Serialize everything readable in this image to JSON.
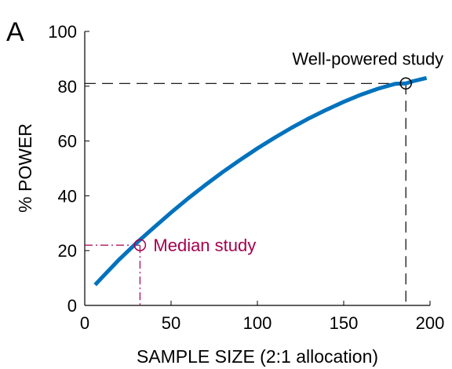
{
  "panel_letter": "A",
  "chart_data": {
    "type": "line",
    "xlabel": "SAMPLE SIZE (2:1 allocation)",
    "ylabel": "% POWER",
    "xlim": [
      0,
      200
    ],
    "ylim": [
      0,
      100
    ],
    "x_ticks": [
      0,
      50,
      100,
      150,
      200
    ],
    "y_ticks": [
      0,
      20,
      40,
      60,
      80,
      100
    ],
    "x_tick_labels": [
      "0",
      "50",
      "100",
      "150",
      "200"
    ],
    "y_tick_labels": [
      "0",
      "20",
      "40",
      "60",
      "80",
      "100"
    ],
    "grid": false,
    "series": [
      {
        "color": "#0072BD",
        "x": [
          6,
          10,
          20,
          30,
          40,
          50,
          60,
          70,
          80,
          90,
          100,
          110,
          120,
          130,
          140,
          150,
          160,
          170,
          180,
          186,
          190,
          198
        ],
        "y": [
          7.5,
          10.2,
          16.8,
          22.8,
          28.4,
          33.9,
          39.1,
          44.0,
          48.7,
          53.1,
          57.3,
          61.2,
          64.9,
          68.3,
          71.4,
          74.3,
          76.9,
          79.1,
          80.9,
          81.0,
          81.8,
          83.0
        ]
      }
    ],
    "annotations": [
      {
        "text": "Median study",
        "x": 32,
        "y": 22,
        "color": "#A6004E",
        "line_style": "dash-dot"
      },
      {
        "text": "Well-powered study",
        "x": 186,
        "y": 81,
        "color": "#000000",
        "line_style": "dashed"
      }
    ]
  }
}
